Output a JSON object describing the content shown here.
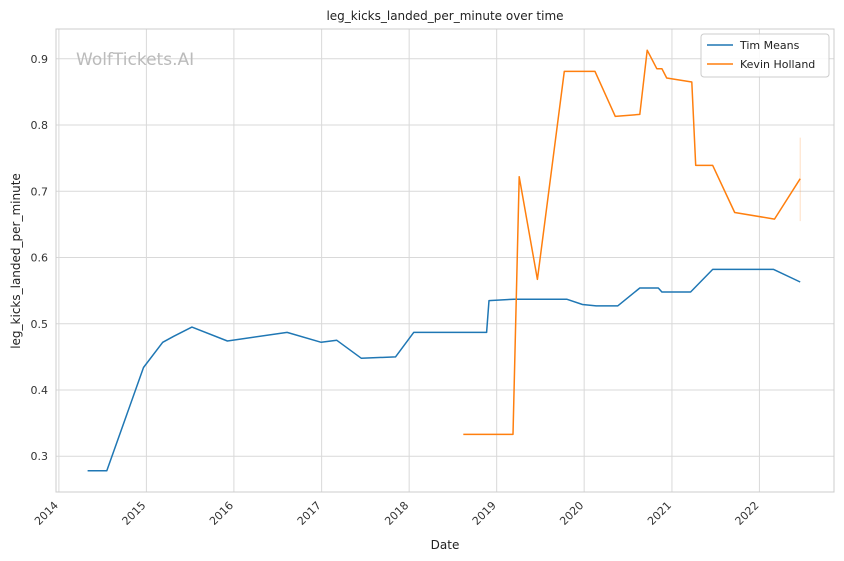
{
  "chart_data": {
    "type": "line",
    "title": "leg_kicks_landed_per_minute over time",
    "xlabel": "Date",
    "ylabel": "leg_kicks_landed_per_minute",
    "watermark": "WolfTickets.AI",
    "x_ticks": [
      "2014",
      "2015",
      "2016",
      "2017",
      "2018",
      "2019",
      "2020",
      "2021",
      "2022"
    ],
    "y_ticks": [
      "0.3",
      "0.4",
      "0.5",
      "0.6",
      "0.7",
      "0.8",
      "0.9"
    ],
    "xlim": [
      "2013-12-20",
      "2022-11-08"
    ],
    "ylim": [
      0.246,
      0.945
    ],
    "grid": true,
    "legend_position": "top-right",
    "series": [
      {
        "name": "Tim Means",
        "color": "#1f77b4",
        "points": [
          [
            "2014-05-01",
            0.278
          ],
          [
            "2014-07-20",
            0.278
          ],
          [
            "2014-12-20",
            0.434
          ],
          [
            "2015-03-10",
            0.472
          ],
          [
            "2015-04-25",
            0.481
          ],
          [
            "2015-07-10",
            0.495
          ],
          [
            "2015-12-05",
            0.474
          ],
          [
            "2016-08-10",
            0.487
          ],
          [
            "2016-12-30",
            0.472
          ],
          [
            "2017-03-05",
            0.475
          ],
          [
            "2017-06-15",
            0.448
          ],
          [
            "2017-11-05",
            0.45
          ],
          [
            "2018-01-20",
            0.487
          ],
          [
            "2018-11-20",
            0.487
          ],
          [
            "2018-11-30",
            0.535
          ],
          [
            "2019-03-15",
            0.537
          ],
          [
            "2019-10-20",
            0.537
          ],
          [
            "2019-12-25",
            0.529
          ],
          [
            "2020-02-20",
            0.527
          ],
          [
            "2020-05-20",
            0.527
          ],
          [
            "2020-08-20",
            0.554
          ],
          [
            "2020-11-05",
            0.554
          ],
          [
            "2020-11-20",
            0.548
          ],
          [
            "2021-03-20",
            0.548
          ],
          [
            "2021-06-20",
            0.582
          ],
          [
            "2022-03-01",
            0.582
          ],
          [
            "2022-06-20",
            0.563
          ]
        ]
      },
      {
        "name": "Kevin Holland",
        "color": "#ff7f0e",
        "points": [
          [
            "2018-08-15",
            0.333
          ],
          [
            "2019-03-10",
            0.333
          ],
          [
            "2019-04-05",
            0.722
          ],
          [
            "2019-06-20",
            0.567
          ],
          [
            "2019-10-10",
            0.881
          ],
          [
            "2020-02-15",
            0.881
          ],
          [
            "2020-05-10",
            0.813
          ],
          [
            "2020-08-20",
            0.816
          ],
          [
            "2020-09-20",
            0.913
          ],
          [
            "2020-10-30",
            0.885
          ],
          [
            "2020-11-20",
            0.885
          ],
          [
            "2020-12-10",
            0.871
          ],
          [
            "2021-03-25",
            0.865
          ],
          [
            "2021-04-10",
            0.739
          ],
          [
            "2021-06-20",
            0.739
          ],
          [
            "2021-09-20",
            0.668
          ],
          [
            "2022-03-05",
            0.658
          ],
          [
            "2022-06-20",
            0.719
          ]
        ],
        "error_band": {
          "x": "2022-06-20",
          "low": 0.655,
          "high": 0.781
        }
      }
    ]
  }
}
